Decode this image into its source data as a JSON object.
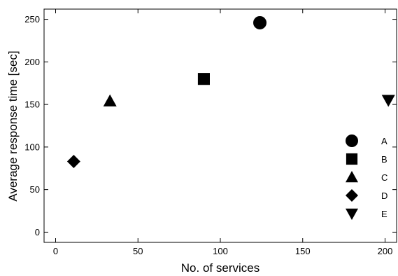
{
  "chart_data": {
    "type": "scatter",
    "title": "",
    "xlabel": "No. of services",
    "ylabel": "Average response time [sec]",
    "xlim": [
      -7,
      207
    ],
    "ylim": [
      -12,
      262
    ],
    "xticks": [
      0,
      50,
      100,
      150,
      200
    ],
    "yticks": [
      0,
      50,
      100,
      150,
      200,
      250
    ],
    "grid": false,
    "legend_position": "bottom-right",
    "series": [
      {
        "name": "A",
        "marker": "circle",
        "x": [
          124
        ],
        "y": [
          246
        ]
      },
      {
        "name": "B",
        "marker": "square",
        "x": [
          90
        ],
        "y": [
          180
        ]
      },
      {
        "name": "C",
        "marker": "triangle-up",
        "x": [
          33
        ],
        "y": [
          154
        ]
      },
      {
        "name": "D",
        "marker": "diamond",
        "x": [
          11
        ],
        "y": [
          83
        ]
      },
      {
        "name": "E",
        "marker": "triangle-down",
        "x": [
          202
        ],
        "y": [
          155
        ]
      }
    ],
    "marker_color": "#000000"
  }
}
